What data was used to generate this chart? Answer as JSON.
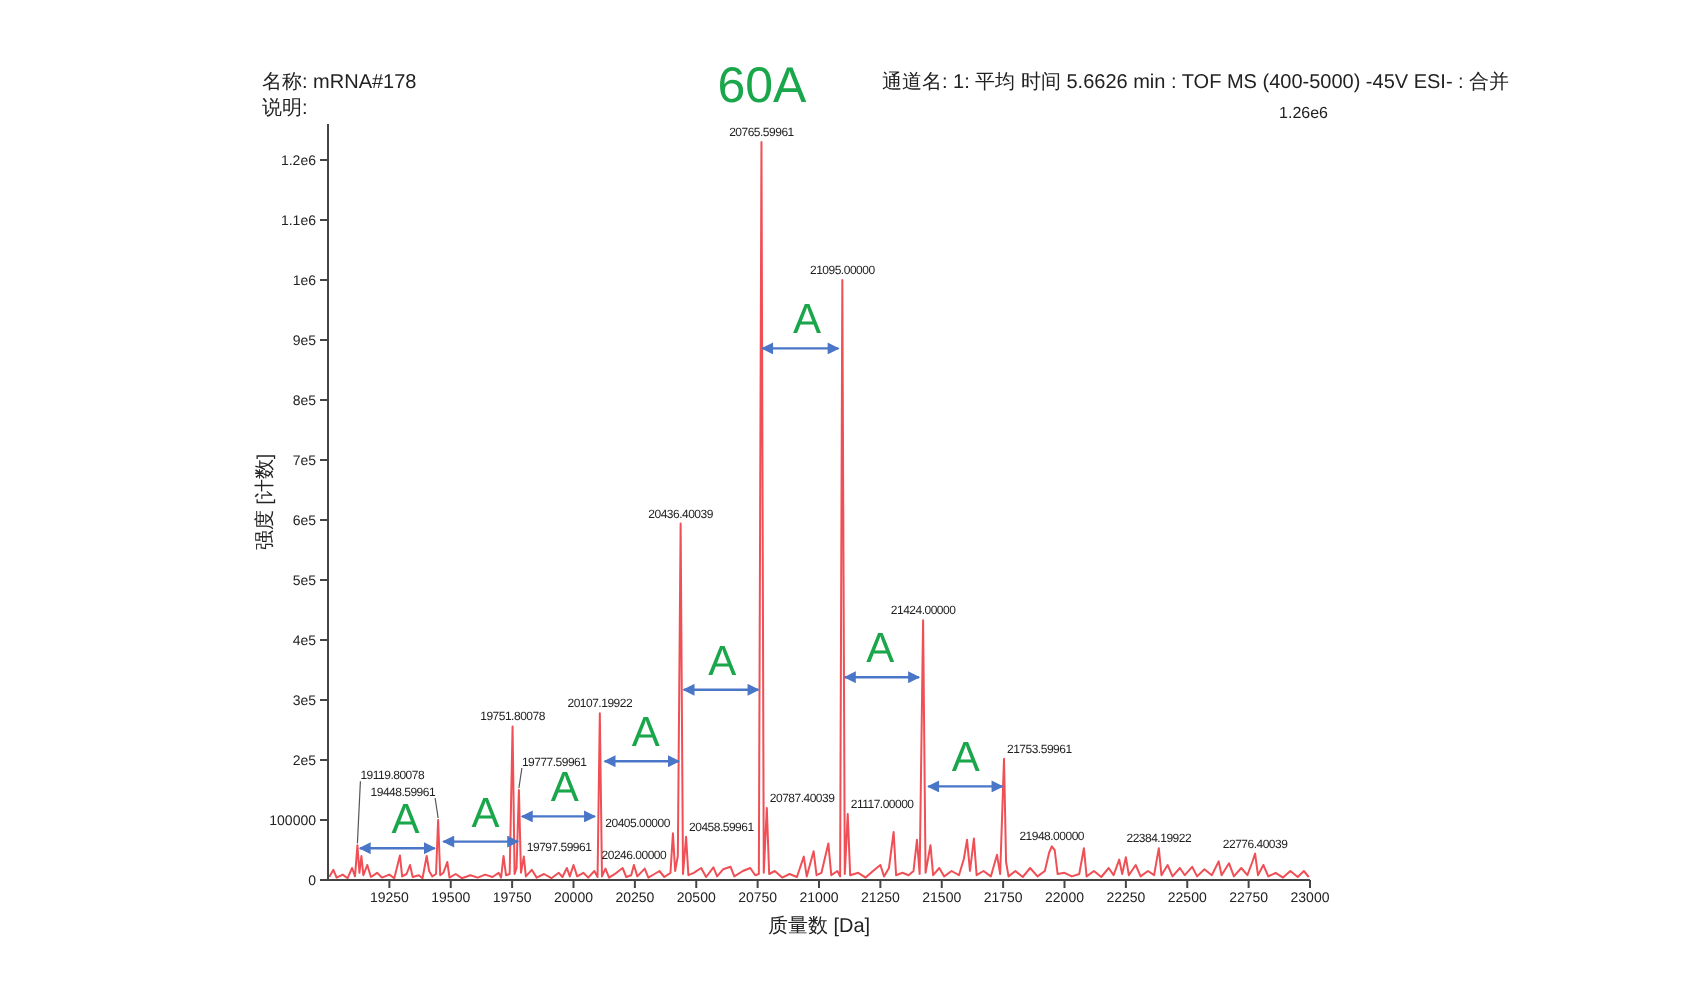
{
  "chart_data": {
    "type": "line",
    "xlabel": "质量数 [Da]",
    "ylabel": "强度 [计数]",
    "xlim": [
      19000,
      23000
    ],
    "ylim": [
      0,
      1260000
    ],
    "xticks": [
      19250,
      19500,
      19750,
      20000,
      20250,
      20500,
      20750,
      21000,
      21250,
      21500,
      21750,
      22000,
      22250,
      22500,
      22750,
      23000
    ],
    "yticks": [
      0,
      100000,
      {
        "value": 200000,
        "label": "2e5"
      },
      {
        "value": 300000,
        "label": "3e5"
      },
      {
        "value": 400000,
        "label": "4e5"
      },
      {
        "value": 500000,
        "label": "5e5"
      },
      {
        "value": 600000,
        "label": "6e5"
      },
      {
        "value": 700000,
        "label": "7e5"
      },
      {
        "value": 800000,
        "label": "8e5"
      },
      {
        "value": 900000,
        "label": "9e5"
      },
      {
        "value": 1000000,
        "label": "1e6"
      },
      {
        "value": 1100000,
        "label": "1.1e6"
      },
      {
        "value": 1200000,
        "label": "1.2e6"
      }
    ],
    "series": [
      {
        "color": "#ef4f55",
        "x": [
          19005,
          19022,
          19035,
          19060,
          19080,
          19098,
          19110,
          19119.80078,
          19128,
          19136,
          19144,
          19160,
          19175,
          19200,
          19220,
          19250,
          19270,
          19293,
          19302,
          19320,
          19334,
          19345,
          19370,
          19385,
          19402,
          19412,
          19425,
          19440,
          19448.59961,
          19457,
          19470,
          19486,
          19495,
          19520,
          19545,
          19580,
          19610,
          19640,
          19670,
          19695,
          19705,
          19715,
          19725,
          19740,
          19751.80078,
          19760,
          19768,
          19777.59961,
          19786,
          19797.59961,
          19806,
          19830,
          19850,
          19880,
          19910,
          19940,
          19955,
          19973,
          19985,
          20000,
          20015,
          20040,
          20060,
          20085,
          20098,
          20107.19922,
          20116,
          20130,
          20145,
          20175,
          20200,
          20215,
          20235,
          20246,
          20260,
          20290,
          20305,
          20330,
          20350,
          20370,
          20395,
          20405,
          20414,
          20425,
          20436.40039,
          20446,
          20458.59961,
          20468,
          20490,
          20520,
          20540,
          20570,
          20585,
          20610,
          20640,
          20655,
          20690,
          20720,
          20740,
          20755,
          20765.59961,
          20775,
          20787.40039,
          20797,
          20820,
          20850,
          20880,
          20910,
          20938,
          20950,
          20978,
          20990,
          21010,
          21038,
          21050,
          21075,
          21086,
          21095,
          21105,
          21117,
          21127,
          21160,
          21190,
          21220,
          21250,
          21265,
          21285,
          21304,
          21314,
          21340,
          21365,
          21385,
          21399,
          21410,
          21424,
          21434,
          21454,
          21465,
          21490,
          21510,
          21540,
          21570,
          21590,
          21603,
          21615,
          21631,
          21642,
          21670,
          21700,
          21725,
          21738,
          21753.59961,
          21762,
          21772,
          21800,
          21830,
          21860,
          21890,
          21920,
          21937,
          21948,
          21960,
          21972,
          22000,
          22030,
          22060,
          22079,
          22090,
          22120,
          22150,
          22180,
          22200,
          22223,
          22235,
          22250,
          22262,
          22290,
          22310,
          22340,
          22365,
          22384.19922,
          22395,
          22420,
          22440,
          22470,
          22490,
          22520,
          22540,
          22570,
          22600,
          22628,
          22640,
          22670,
          22690,
          22720,
          22745,
          22765,
          22776.40039,
          22788,
          22810,
          22830,
          22860,
          22890,
          22920,
          22950,
          22975,
          22995
        ],
        "values": [
          5000,
          17000,
          4000,
          9000,
          3000,
          20000,
          6000,
          58000,
          12000,
          40000,
          8000,
          25000,
          5000,
          12000,
          4000,
          9000,
          3000,
          41000,
          6000,
          10000,
          25000,
          5000,
          8000,
          3000,
          40000,
          15000,
          6000,
          10000,
          100000,
          8000,
          12000,
          30000,
          4000,
          10000,
          3000,
          8000,
          4000,
          9000,
          5000,
          12000,
          4000,
          40000,
          8000,
          10000,
          256000,
          10000,
          20000,
          150000,
          12000,
          39000,
          6000,
          17000,
          4000,
          10000,
          3000,
          12000,
          5000,
          20000,
          6000,
          25000,
          6000,
          12000,
          4000,
          15000,
          5000,
          278000,
          6000,
          19000,
          4000,
          12000,
          20000,
          5000,
          8000,
          25000,
          6000,
          19000,
          4000,
          10000,
          15000,
          5000,
          12000,
          78000,
          15000,
          40000,
          594000,
          10000,
          72000,
          8000,
          12000,
          20000,
          5000,
          21000,
          6000,
          18000,
          22000,
          6000,
          15000,
          20000,
          8000,
          10000,
          1230000,
          12000,
          120000,
          10000,
          15000,
          4000,
          10000,
          5000,
          39000,
          6000,
          48000,
          8000,
          12000,
          61000,
          8000,
          15000,
          6000,
          1000000,
          10000,
          110000,
          8000,
          12000,
          4000,
          15000,
          25000,
          6000,
          20000,
          80000,
          8000,
          12000,
          8000,
          15000,
          67000,
          10000,
          433000,
          12000,
          58000,
          8000,
          20000,
          6000,
          15000,
          8000,
          35000,
          67000,
          15000,
          69000,
          8000,
          15000,
          6000,
          42000,
          10000,
          202000,
          30000,
          6000,
          15000,
          5000,
          20000,
          6000,
          15000,
          45000,
          56000,
          50000,
          10000,
          12000,
          6000,
          10000,
          53000,
          6000,
          15000,
          5000,
          20000,
          8000,
          34000,
          10000,
          38000,
          8000,
          25000,
          6000,
          15000,
          8000,
          53000,
          8000,
          25000,
          6000,
          20000,
          8000,
          22000,
          6000,
          18000,
          8000,
          31000,
          8000,
          28000,
          6000,
          20000,
          8000,
          30000,
          44000,
          8000,
          25000,
          6000,
          12000,
          4000,
          15000,
          5000,
          15000,
          5000
        ]
      },
      {
        "color": "#4a76c8",
        "x": [
          19130,
          19435
        ],
        "values": [
          53000,
          53000
        ]
      },
      {
        "color": "#4a76c8",
        "x": [
          19470,
          19774
        ],
        "values": [
          64000,
          64000
        ]
      },
      {
        "color": "#4a76c8",
        "x": [
          19790,
          20087
        ],
        "values": [
          106000,
          106000
        ]
      },
      {
        "color": "#4a76c8",
        "x": [
          20127,
          20429
        ],
        "values": [
          198000,
          198000
        ]
      },
      {
        "color": "#4a76c8",
        "x": [
          20449,
          20753
        ],
        "values": [
          317000,
          317000
        ]
      },
      {
        "color": "#4a76c8",
        "x": [
          20769,
          21079
        ],
        "values": [
          886000,
          886000
        ]
      },
      {
        "color": "#4a76c8",
        "x": [
          21106,
          21407
        ],
        "values": [
          338000,
          338000
        ]
      },
      {
        "color": "#4a76c8",
        "x": [
          21445,
          21747
        ],
        "values": [
          156000,
          156000
        ]
      }
    ],
    "annotations": [
      "名称: mRNA#178",
      "说明:",
      "60A",
      "通道名: 1: 平均 时间 5.6626 min : TOF MS (400-5000) -45V ESI- : 合并",
      "1.26e6",
      {
        "text": "19119.80078",
        "x": 19119.80078,
        "y": 58000
      },
      {
        "text": "19448.59961",
        "x": 19448.59961,
        "y": 100000
      },
      {
        "text": "19751.80078",
        "x": 19751.80078,
        "y": 256000
      },
      {
        "text": "19777.59961",
        "x": 19777.59961,
        "y": 150000
      },
      {
        "text": "19797.59961",
        "x": 19797.59961,
        "y": 39000
      },
      {
        "text": "20107.19922",
        "x": 20107.19922,
        "y": 278000
      },
      {
        "text": "20246.00000",
        "x": 20246,
        "y": 25000
      },
      {
        "text": "20405.00000",
        "x": 20405,
        "y": 78000
      },
      {
        "text": "20436.40039",
        "x": 20436.40039,
        "y": 594000
      },
      {
        "text": "20458.59961",
        "x": 20458.59961,
        "y": 72000
      },
      {
        "text": "20765.59961",
        "x": 20765.59961,
        "y": 1230000
      },
      {
        "text": "20787.40039",
        "x": 20787.40039,
        "y": 120000
      },
      {
        "text": "21095.00000",
        "x": 21095,
        "y": 1000000
      },
      {
        "text": "21117.00000",
        "x": 21117,
        "y": 110000
      },
      {
        "text": "21424.00000",
        "x": 21424,
        "y": 433000
      },
      {
        "text": "21753.59961",
        "x": 21753.59961,
        "y": 202000
      },
      {
        "text": "21948.00000",
        "x": 21948,
        "y": 56000
      },
      {
        "text": "22384.19922",
        "x": 22384.19922,
        "y": 53000
      },
      {
        "text": "22776.40039",
        "x": 22776.40039,
        "y": 44000
      },
      {
        "text": "A",
        "x": 19316,
        "y": 53000
      },
      {
        "text": "A",
        "x": 19642,
        "y": 64000
      },
      {
        "text": "A",
        "x": 19964,
        "y": 106000
      },
      {
        "text": "A",
        "x": 20294,
        "y": 198000
      },
      {
        "text": "A",
        "x": 20606,
        "y": 317000
      },
      {
        "text": "A",
        "x": 20951,
        "y": 886000
      },
      {
        "text": "A",
        "x": 21250,
        "y": 338000
      },
      {
        "text": "A",
        "x": 21598,
        "y": 156000
      }
    ]
  }
}
